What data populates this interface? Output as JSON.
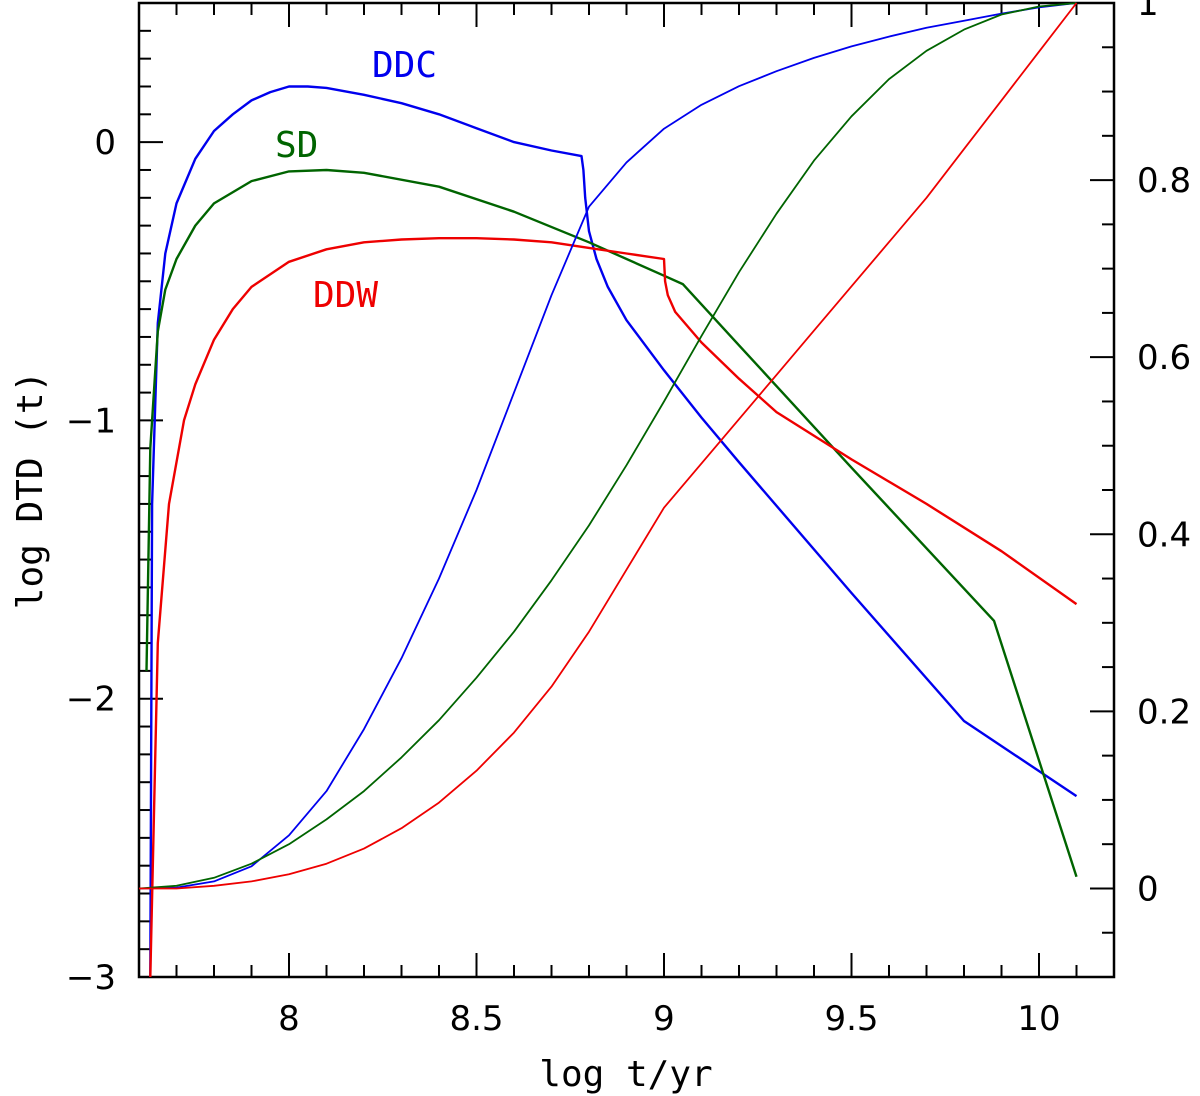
{
  "chart_data": {
    "type": "line",
    "xlabel": "log t/yr",
    "ylabel": "log DTD (t)",
    "xlim": [
      7.6,
      10.2
    ],
    "ylim_left": [
      -3,
      0.5
    ],
    "ylim_right": [
      -0.1,
      1.0
    ],
    "x_ticks": [
      {
        "value": 8,
        "label": "8"
      },
      {
        "value": 8.5,
        "label": "8.5"
      },
      {
        "value": 9,
        "label": "9"
      },
      {
        "value": 9.5,
        "label": "9.5"
      },
      {
        "value": 10,
        "label": "10"
      }
    ],
    "y_left_ticks": [
      {
        "value": 0,
        "label": "0"
      },
      {
        "value": -1,
        "label": "−1"
      },
      {
        "value": -2,
        "label": "−2"
      },
      {
        "value": -3,
        "label": "−3"
      }
    ],
    "y_right_ticks": [
      {
        "value": 0,
        "label": "0"
      },
      {
        "value": 0.2,
        "label": "0.2"
      },
      {
        "value": 0.4,
        "label": "0.4"
      },
      {
        "value": 0.6,
        "label": "0.6"
      },
      {
        "value": 0.8,
        "label": "0.8"
      },
      {
        "value": 1,
        "label": "1"
      }
    ],
    "series": [
      {
        "name": "DDC",
        "label": "DDC",
        "color": "#0000ee",
        "axis": "left",
        "kind": "dtd",
        "x": [
          7.63,
          7.635,
          7.65,
          7.67,
          7.7,
          7.75,
          7.8,
          7.85,
          7.9,
          7.95,
          8.0,
          8.05,
          8.1,
          8.2,
          8.3,
          8.4,
          8.5,
          8.6,
          8.7,
          8.78,
          8.785,
          8.79,
          8.8,
          8.82,
          8.85,
          8.9,
          9.0,
          9.1,
          9.2,
          9.5,
          9.8,
          10.1
        ],
        "y": [
          -3.0,
          -1.3,
          -0.65,
          -0.4,
          -0.22,
          -0.06,
          0.04,
          0.1,
          0.15,
          0.18,
          0.2,
          0.2,
          0.195,
          0.17,
          0.14,
          0.1,
          0.05,
          0.0,
          -0.03,
          -0.05,
          -0.1,
          -0.2,
          -0.32,
          -0.42,
          -0.52,
          -0.64,
          -0.82,
          -0.99,
          -1.15,
          -1.62,
          -2.08,
          -2.35
        ]
      },
      {
        "name": "SD",
        "label": "SD",
        "color": "#006400",
        "axis": "left",
        "kind": "dtd",
        "x": [
          7.62,
          7.63,
          7.65,
          7.67,
          7.7,
          7.75,
          7.8,
          7.9,
          8.0,
          8.1,
          8.2,
          8.4,
          8.6,
          8.8,
          9.0,
          9.05,
          9.2,
          9.5,
          9.88,
          10.1
        ],
        "y": [
          -1.9,
          -1.1,
          -0.68,
          -0.53,
          -0.42,
          -0.3,
          -0.22,
          -0.14,
          -0.105,
          -0.1,
          -0.11,
          -0.16,
          -0.25,
          -0.36,
          -0.48,
          -0.51,
          -0.73,
          -1.17,
          -1.72,
          -2.64
        ]
      },
      {
        "name": "DDW",
        "label": "DDW",
        "color": "#ee0000",
        "axis": "left",
        "kind": "dtd",
        "x": [
          7.63,
          7.65,
          7.68,
          7.72,
          7.75,
          7.8,
          7.85,
          7.9,
          8.0,
          8.1,
          8.2,
          8.3,
          8.4,
          8.5,
          8.6,
          8.7,
          8.8,
          8.9,
          9.0,
          9.003,
          9.01,
          9.03,
          9.1,
          9.2,
          9.3,
          9.5,
          9.7,
          9.9,
          10.1
        ],
        "y": [
          -3.0,
          -1.8,
          -1.3,
          -1.0,
          -0.87,
          -0.71,
          -0.6,
          -0.52,
          -0.43,
          -0.385,
          -0.36,
          -0.35,
          -0.345,
          -0.345,
          -0.35,
          -0.36,
          -0.38,
          -0.4,
          -0.42,
          -0.5,
          -0.55,
          -0.61,
          -0.72,
          -0.85,
          -0.97,
          -1.14,
          -1.3,
          -1.47,
          -1.66
        ]
      },
      {
        "name": "DDC cumulative",
        "color": "#0000ee",
        "axis": "right",
        "kind": "cumulative",
        "x": [
          7.6,
          7.7,
          7.8,
          7.9,
          8.0,
          8.1,
          8.2,
          8.3,
          8.4,
          8.5,
          8.6,
          8.7,
          8.78,
          8.8,
          8.9,
          9.0,
          9.1,
          9.2,
          9.3,
          9.4,
          9.5,
          9.6,
          9.7,
          9.8,
          9.9,
          10.0,
          10.1
        ],
        "y": [
          0.0,
          0.001,
          0.008,
          0.025,
          0.06,
          0.11,
          0.18,
          0.26,
          0.35,
          0.45,
          0.56,
          0.67,
          0.75,
          0.77,
          0.82,
          0.858,
          0.885,
          0.906,
          0.923,
          0.938,
          0.951,
          0.962,
          0.972,
          0.98,
          0.988,
          0.995,
          1.0
        ]
      },
      {
        "name": "SD cumulative",
        "color": "#006400",
        "axis": "right",
        "kind": "cumulative",
        "x": [
          7.6,
          7.7,
          7.8,
          7.9,
          8.0,
          8.1,
          8.2,
          8.3,
          8.4,
          8.5,
          8.6,
          8.7,
          8.8,
          8.9,
          9.0,
          9.1,
          9.2,
          9.3,
          9.4,
          9.5,
          9.6,
          9.7,
          9.8,
          9.9,
          10.0,
          10.1
        ],
        "y": [
          0.0,
          0.003,
          0.012,
          0.028,
          0.05,
          0.078,
          0.11,
          0.148,
          0.19,
          0.238,
          0.29,
          0.348,
          0.41,
          0.478,
          0.55,
          0.624,
          0.696,
          0.762,
          0.822,
          0.872,
          0.914,
          0.946,
          0.97,
          0.987,
          0.996,
          1.0
        ]
      },
      {
        "name": "DDW cumulative",
        "color": "#ee0000",
        "axis": "right",
        "kind": "cumulative",
        "x": [
          7.6,
          7.7,
          7.8,
          7.9,
          8.0,
          8.1,
          8.2,
          8.3,
          8.4,
          8.5,
          8.6,
          8.7,
          8.8,
          8.9,
          9.0,
          9.1,
          9.2,
          9.3,
          9.4,
          9.5,
          9.6,
          9.7,
          9.8,
          9.9,
          10.0,
          10.1
        ],
        "y": [
          0.0,
          0.0,
          0.003,
          0.008,
          0.016,
          0.028,
          0.045,
          0.068,
          0.097,
          0.133,
          0.176,
          0.228,
          0.29,
          0.36,
          0.43,
          0.48,
          0.53,
          0.58,
          0.63,
          0.68,
          0.73,
          0.78,
          0.835,
          0.89,
          0.945,
          1.0
        ]
      }
    ],
    "annotations": [
      {
        "text": "DDC",
        "series": "DDC"
      },
      {
        "text": "SD",
        "series": "SD"
      },
      {
        "text": "DDW",
        "series": "DDW"
      }
    ]
  }
}
